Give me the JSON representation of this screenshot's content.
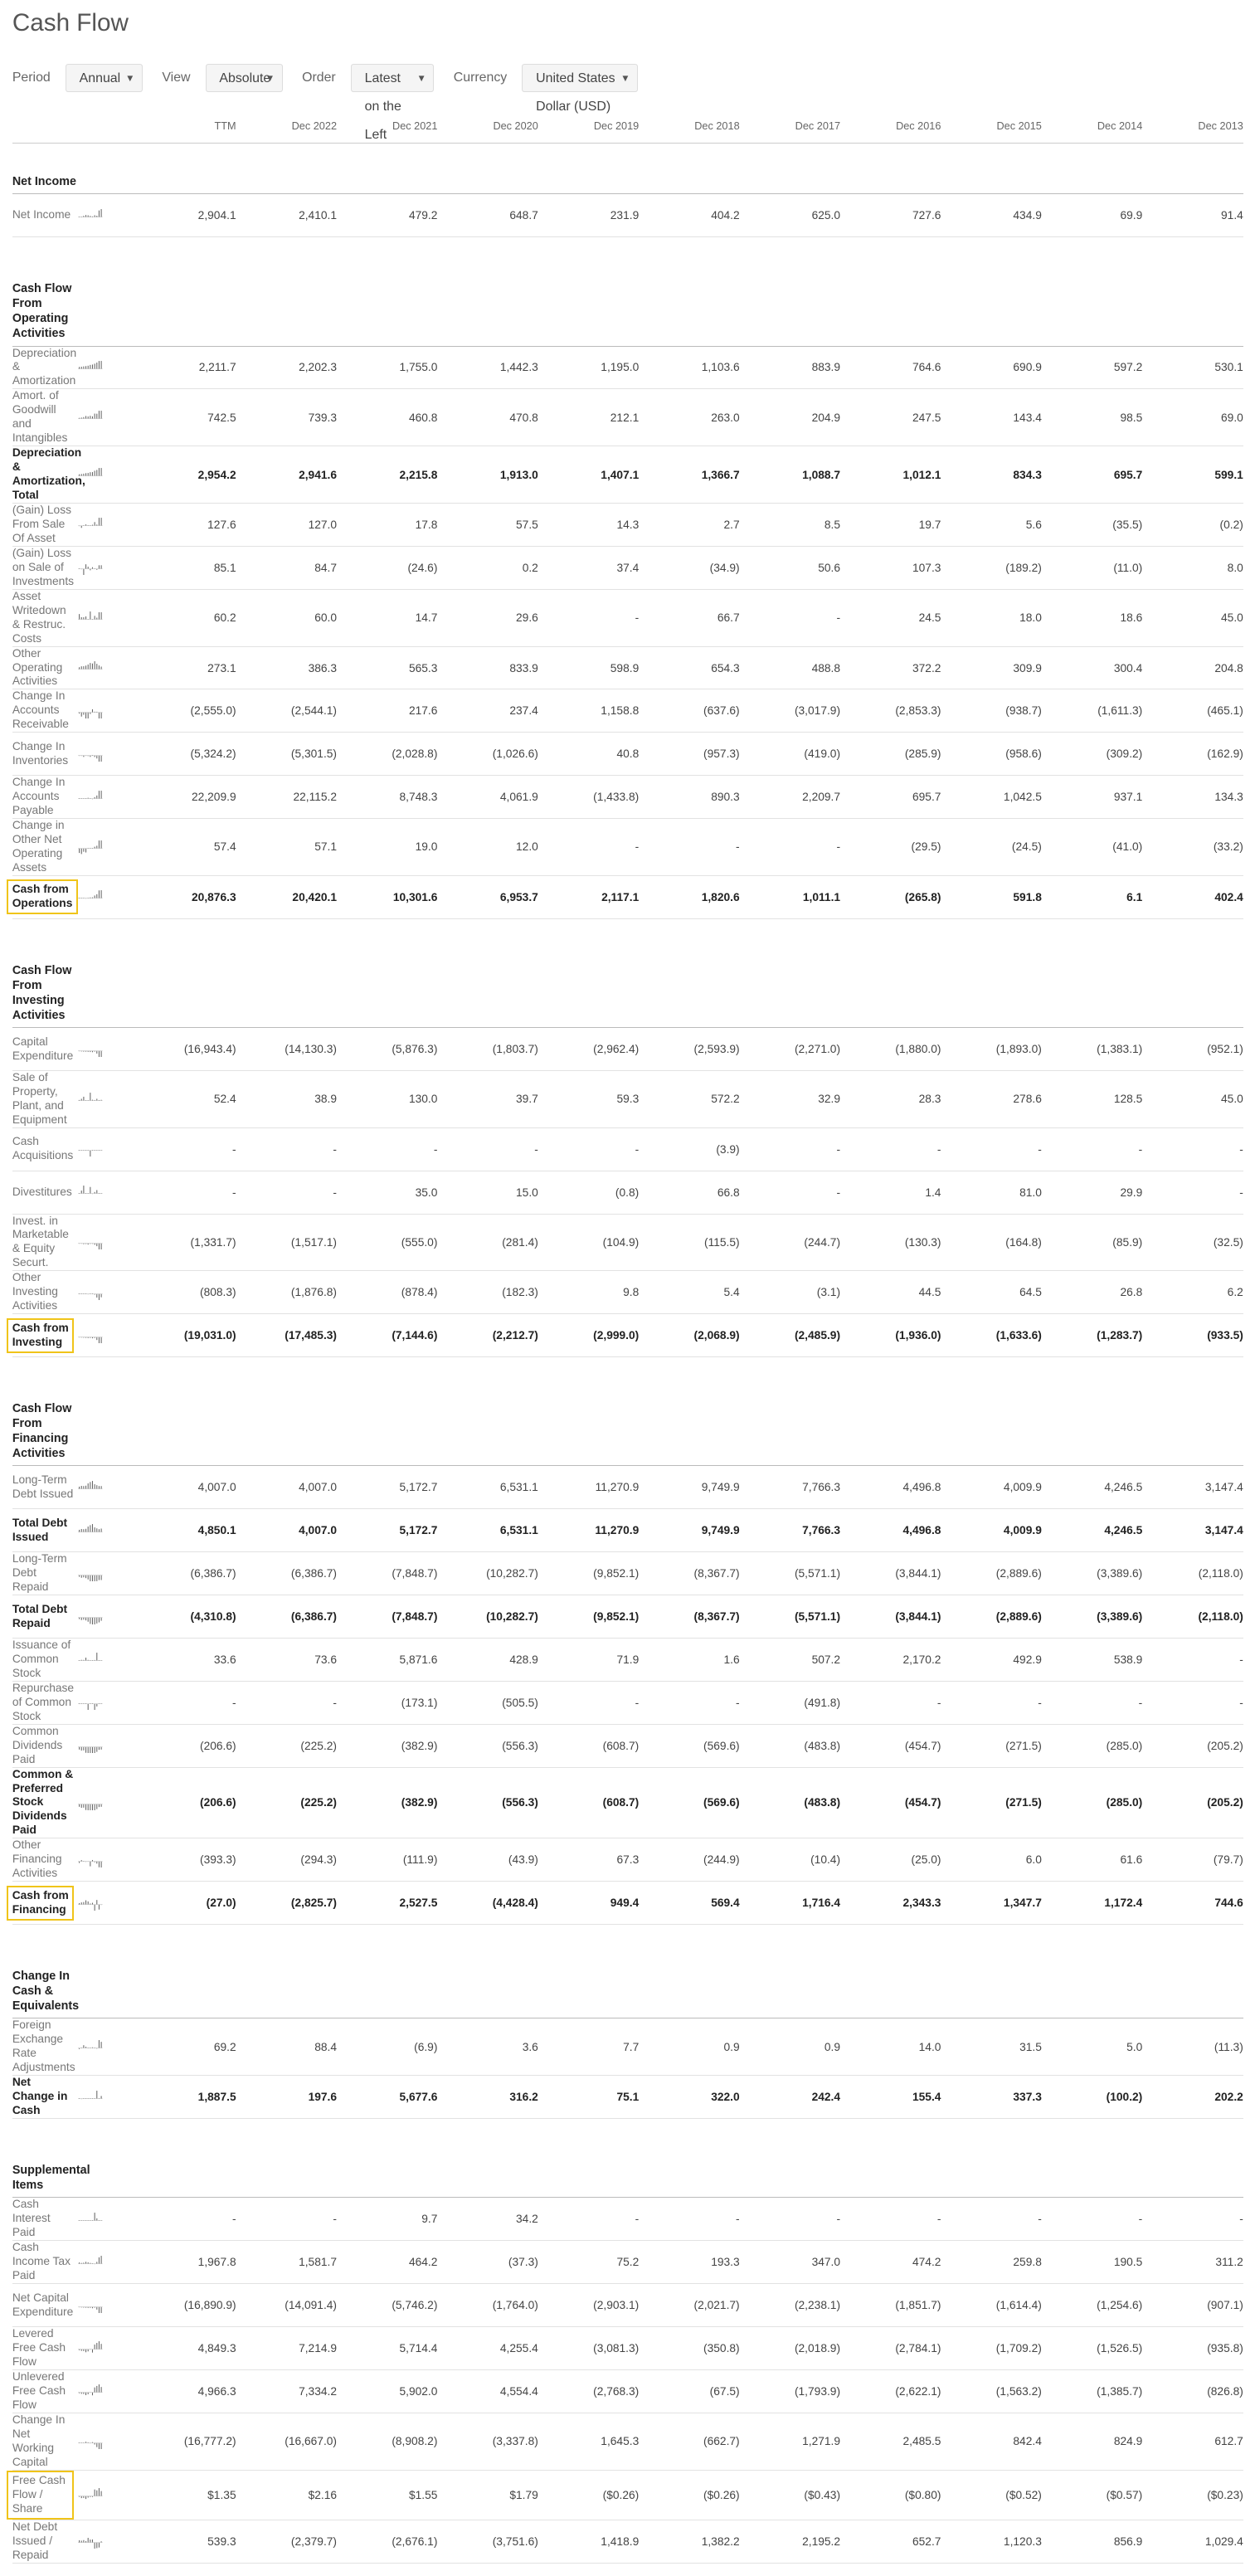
{
  "page": {
    "title": "Cash Flow"
  },
  "controls": {
    "period_label": "Period",
    "period_value": "Annual",
    "view_label": "View",
    "view_value": "Absolute",
    "order_label": "Order",
    "order_value": "Latest on the Left",
    "currency_label": "Currency",
    "currency_value": "United States Dollar (USD)"
  },
  "columns": [
    "TTM",
    "Dec 2022",
    "Dec 2021",
    "Dec 2020",
    "Dec 2019",
    "Dec 2018",
    "Dec 2017",
    "Dec 2016",
    "Dec 2015",
    "Dec 2014",
    "Dec 2013"
  ],
  "sections": [
    {
      "title": "Net Income",
      "rows": [
        {
          "label": "Net Income",
          "values": [
            "2,904.1",
            "2,410.1",
            "479.2",
            "648.7",
            "231.9",
            "404.2",
            "625.0",
            "727.6",
            "434.9",
            "69.9",
            "91.4"
          ]
        }
      ]
    },
    {
      "title": "Cash Flow From Operating Activities",
      "rows": [
        {
          "label": "Depreciation & Amortization",
          "values": [
            "2,211.7",
            "2,202.3",
            "1,755.0",
            "1,442.3",
            "1,195.0",
            "1,103.6",
            "883.9",
            "764.6",
            "690.9",
            "597.2",
            "530.1"
          ]
        },
        {
          "label": "Amort. of Goodwill and Intangibles",
          "values": [
            "742.5",
            "739.3",
            "460.8",
            "470.8",
            "212.1",
            "263.0",
            "204.9",
            "247.5",
            "143.4",
            "98.5",
            "69.0"
          ]
        },
        {
          "label": "Depreciation & Amortization, Total",
          "bold": true,
          "values": [
            "2,954.2",
            "2,941.6",
            "2,215.8",
            "1,913.0",
            "1,407.1",
            "1,366.7",
            "1,088.7",
            "1,012.1",
            "834.3",
            "695.7",
            "599.1"
          ]
        },
        {
          "label": "(Gain) Loss From Sale Of Asset",
          "values": [
            "127.6",
            "127.0",
            "17.8",
            "57.5",
            "14.3",
            "2.7",
            "8.5",
            "19.7",
            "5.6",
            "(35.5)",
            "(0.2)"
          ]
        },
        {
          "label": "(Gain) Loss on Sale of Investments",
          "values": [
            "85.1",
            "84.7",
            "(24.6)",
            "0.2",
            "37.4",
            "(34.9)",
            "50.6",
            "107.3",
            "(189.2)",
            "(11.0)",
            "8.0"
          ]
        },
        {
          "label": "Asset Writedown & Restruc. Costs",
          "values": [
            "60.2",
            "60.0",
            "14.7",
            "29.6",
            "-",
            "66.7",
            "-",
            "24.5",
            "18.0",
            "18.6",
            "45.0"
          ]
        },
        {
          "label": "Other Operating Activities",
          "values": [
            "273.1",
            "386.3",
            "565.3",
            "833.9",
            "598.9",
            "654.3",
            "488.8",
            "372.2",
            "309.9",
            "300.4",
            "204.8"
          ]
        },
        {
          "label": "Change In Accounts Receivable",
          "values": [
            "(2,555.0)",
            "(2,544.1)",
            "217.6",
            "237.4",
            "1,158.8",
            "(637.6)",
            "(3,017.9)",
            "(2,853.3)",
            "(938.7)",
            "(1,611.3)",
            "(465.1)"
          ]
        },
        {
          "label": "Change In Inventories",
          "values": [
            "(5,324.2)",
            "(5,301.5)",
            "(2,028.8)",
            "(1,026.6)",
            "40.8",
            "(957.3)",
            "(419.0)",
            "(285.9)",
            "(958.6)",
            "(309.2)",
            "(162.9)"
          ]
        },
        {
          "label": "Change In Accounts Payable",
          "values": [
            "22,209.9",
            "22,115.2",
            "8,748.3",
            "4,061.9",
            "(1,433.8)",
            "890.3",
            "2,209.7",
            "695.7",
            "1,042.5",
            "937.1",
            "134.3"
          ]
        },
        {
          "label": "Change in Other Net Operating Assets",
          "values": [
            "57.4",
            "57.1",
            "19.0",
            "12.0",
            "-",
            "-",
            "-",
            "(29.5)",
            "(24.5)",
            "(41.0)",
            "(33.2)"
          ]
        },
        {
          "label": "Cash from Operations",
          "bold": true,
          "highlight": true,
          "values": [
            "20,876.3",
            "20,420.1",
            "10,301.6",
            "6,953.7",
            "2,117.1",
            "1,820.6",
            "1,011.1",
            "(265.8)",
            "591.8",
            "6.1",
            "402.4"
          ]
        }
      ]
    },
    {
      "title": "Cash Flow From Investing Activities",
      "rows": [
        {
          "label": "Capital Expenditure",
          "values": [
            "(16,943.4)",
            "(14,130.3)",
            "(5,876.3)",
            "(1,803.7)",
            "(2,962.4)",
            "(2,593.9)",
            "(2,271.0)",
            "(1,880.0)",
            "(1,893.0)",
            "(1,383.1)",
            "(952.1)"
          ]
        },
        {
          "label": "Sale of Property, Plant, and Equipment",
          "values": [
            "52.4",
            "38.9",
            "130.0",
            "39.7",
            "59.3",
            "572.2",
            "32.9",
            "28.3",
            "278.6",
            "128.5",
            "45.0"
          ]
        },
        {
          "label": "Cash Acquisitions",
          "values": [
            "-",
            "-",
            "-",
            "-",
            "-",
            "(3.9)",
            "-",
            "-",
            "-",
            "-",
            "-"
          ]
        },
        {
          "label": "Divestitures",
          "values": [
            "-",
            "-",
            "35.0",
            "15.0",
            "(0.8)",
            "66.8",
            "-",
            "1.4",
            "81.0",
            "29.9",
            "-"
          ]
        },
        {
          "label": "Invest. in Marketable & Equity Securt.",
          "values": [
            "(1,331.7)",
            "(1,517.1)",
            "(555.0)",
            "(281.4)",
            "(104.9)",
            "(115.5)",
            "(244.7)",
            "(130.3)",
            "(164.8)",
            "(85.9)",
            "(32.5)"
          ]
        },
        {
          "label": "Other Investing Activities",
          "values": [
            "(808.3)",
            "(1,876.8)",
            "(878.4)",
            "(182.3)",
            "9.8",
            "5.4",
            "(3.1)",
            "44.5",
            "64.5",
            "26.8",
            "6.2"
          ]
        },
        {
          "label": "Cash from Investing",
          "bold": true,
          "highlight": true,
          "values": [
            "(19,031.0)",
            "(17,485.3)",
            "(7,144.6)",
            "(2,212.7)",
            "(2,999.0)",
            "(2,068.9)",
            "(2,485.9)",
            "(1,936.0)",
            "(1,633.6)",
            "(1,283.7)",
            "(933.5)"
          ]
        }
      ]
    },
    {
      "title": "Cash Flow From Financing Activities",
      "rows": [
        {
          "label": "Long-Term Debt Issued",
          "values": [
            "4,007.0",
            "4,007.0",
            "5,172.7",
            "6,531.1",
            "11,270.9",
            "9,749.9",
            "7,766.3",
            "4,496.8",
            "4,009.9",
            "4,246.5",
            "3,147.4"
          ]
        },
        {
          "label": "Total Debt Issued",
          "bold": true,
          "values": [
            "4,850.1",
            "4,007.0",
            "5,172.7",
            "6,531.1",
            "11,270.9",
            "9,749.9",
            "7,766.3",
            "4,496.8",
            "4,009.9",
            "4,246.5",
            "3,147.4"
          ]
        },
        {
          "label": "Long-Term Debt Repaid",
          "values": [
            "(6,386.7)",
            "(6,386.7)",
            "(7,848.7)",
            "(10,282.7)",
            "(9,852.1)",
            "(8,367.7)",
            "(5,571.1)",
            "(3,844.1)",
            "(2,889.6)",
            "(3,389.6)",
            "(2,118.0)"
          ]
        },
        {
          "label": "Total Debt Repaid",
          "bold": true,
          "values": [
            "(4,310.8)",
            "(6,386.7)",
            "(7,848.7)",
            "(10,282.7)",
            "(9,852.1)",
            "(8,367.7)",
            "(5,571.1)",
            "(3,844.1)",
            "(2,889.6)",
            "(3,389.6)",
            "(2,118.0)"
          ]
        },
        {
          "label": "Issuance of Common Stock",
          "values": [
            "33.6",
            "73.6",
            "5,871.6",
            "428.9",
            "71.9",
            "1.6",
            "507.2",
            "2,170.2",
            "492.9",
            "538.9",
            "-"
          ]
        },
        {
          "label": "Repurchase of Common Stock",
          "values": [
            "-",
            "-",
            "(173.1)",
            "(505.5)",
            "-",
            "-",
            "(491.8)",
            "-",
            "-",
            "-",
            "-"
          ]
        },
        {
          "label": "Common Dividends Paid",
          "values": [
            "(206.6)",
            "(225.2)",
            "(382.9)",
            "(556.3)",
            "(608.7)",
            "(569.6)",
            "(483.8)",
            "(454.7)",
            "(271.5)",
            "(285.0)",
            "(205.2)"
          ]
        },
        {
          "label": "Common & Preferred Stock Dividends Paid",
          "bold": true,
          "values": [
            "(206.6)",
            "(225.2)",
            "(382.9)",
            "(556.3)",
            "(608.7)",
            "(569.6)",
            "(483.8)",
            "(454.7)",
            "(271.5)",
            "(285.0)",
            "(205.2)"
          ]
        },
        {
          "label": "Other Financing Activities",
          "values": [
            "(393.3)",
            "(294.3)",
            "(111.9)",
            "(43.9)",
            "67.3",
            "(244.9)",
            "(10.4)",
            "(25.0)",
            "6.0",
            "61.6",
            "(79.7)"
          ]
        },
        {
          "label": "Cash from Financing",
          "bold": true,
          "highlight": true,
          "values": [
            "(27.0)",
            "(2,825.7)",
            "2,527.5",
            "(4,428.4)",
            "949.4",
            "569.4",
            "1,716.4",
            "2,343.3",
            "1,347.7",
            "1,172.4",
            "744.6"
          ]
        }
      ]
    },
    {
      "title": "Change In Cash & Equivalents",
      "rows": [
        {
          "label": "Foreign Exchange Rate Adjustments",
          "values": [
            "69.2",
            "88.4",
            "(6.9)",
            "3.6",
            "7.7",
            "0.9",
            "0.9",
            "14.0",
            "31.5",
            "5.0",
            "(11.3)"
          ]
        },
        {
          "label": "Net Change in Cash",
          "bold": true,
          "values": [
            "1,887.5",
            "197.6",
            "5,677.6",
            "316.2",
            "75.1",
            "322.0",
            "242.4",
            "155.4",
            "337.3",
            "(100.2)",
            "202.2"
          ]
        }
      ]
    },
    {
      "title": "Supplemental Items",
      "rows": [
        {
          "label": "Cash Interest Paid",
          "values": [
            "-",
            "-",
            "9.7",
            "34.2",
            "-",
            "-",
            "-",
            "-",
            "-",
            "-",
            "-"
          ]
        },
        {
          "label": "Cash Income Tax Paid",
          "values": [
            "1,967.8",
            "1,581.7",
            "464.2",
            "(37.3)",
            "75.2",
            "193.3",
            "347.0",
            "474.2",
            "259.8",
            "190.5",
            "311.2"
          ]
        },
        {
          "label": "Net Capital Expenditure",
          "values": [
            "(16,890.9)",
            "(14,091.4)",
            "(5,746.2)",
            "(1,764.0)",
            "(2,903.1)",
            "(2,021.7)",
            "(2,238.1)",
            "(1,851.7)",
            "(1,614.4)",
            "(1,254.6)",
            "(907.1)"
          ]
        },
        {
          "label": "Levered Free Cash Flow",
          "values": [
            "4,849.3",
            "7,214.9",
            "5,714.4",
            "4,255.4",
            "(3,081.3)",
            "(350.8)",
            "(2,018.9)",
            "(2,784.1)",
            "(1,709.2)",
            "(1,526.5)",
            "(935.8)"
          ]
        },
        {
          "label": "Unlevered Free Cash Flow",
          "values": [
            "4,966.3",
            "7,334.2",
            "5,902.0",
            "4,554.4",
            "(2,768.3)",
            "(67.5)",
            "(1,793.9)",
            "(2,622.1)",
            "(1,563.2)",
            "(1,385.7)",
            "(826.8)"
          ]
        },
        {
          "label": "Change In Net Working Capital",
          "values": [
            "(16,777.2)",
            "(16,667.0)",
            "(8,908.2)",
            "(3,337.8)",
            "1,645.3",
            "(662.7)",
            "1,271.9",
            "2,485.5",
            "842.4",
            "824.9",
            "612.7"
          ]
        },
        {
          "label": "Free Cash Flow / Share",
          "highlight": true,
          "values": [
            "$1.35",
            "$2.16",
            "$1.55",
            "$1.79",
            "($0.26)",
            "($0.26)",
            "($0.43)",
            "($0.80)",
            "($0.52)",
            "($0.57)",
            "($0.23)"
          ]
        },
        {
          "label": "Net Debt Issued / Repaid",
          "values": [
            "539.3",
            "(2,379.7)",
            "(2,676.1)",
            "(3,751.6)",
            "1,418.9",
            "1,382.2",
            "2,195.2",
            "652.7",
            "1,120.3",
            "856.9",
            "1,029.4"
          ]
        }
      ]
    }
  ]
}
